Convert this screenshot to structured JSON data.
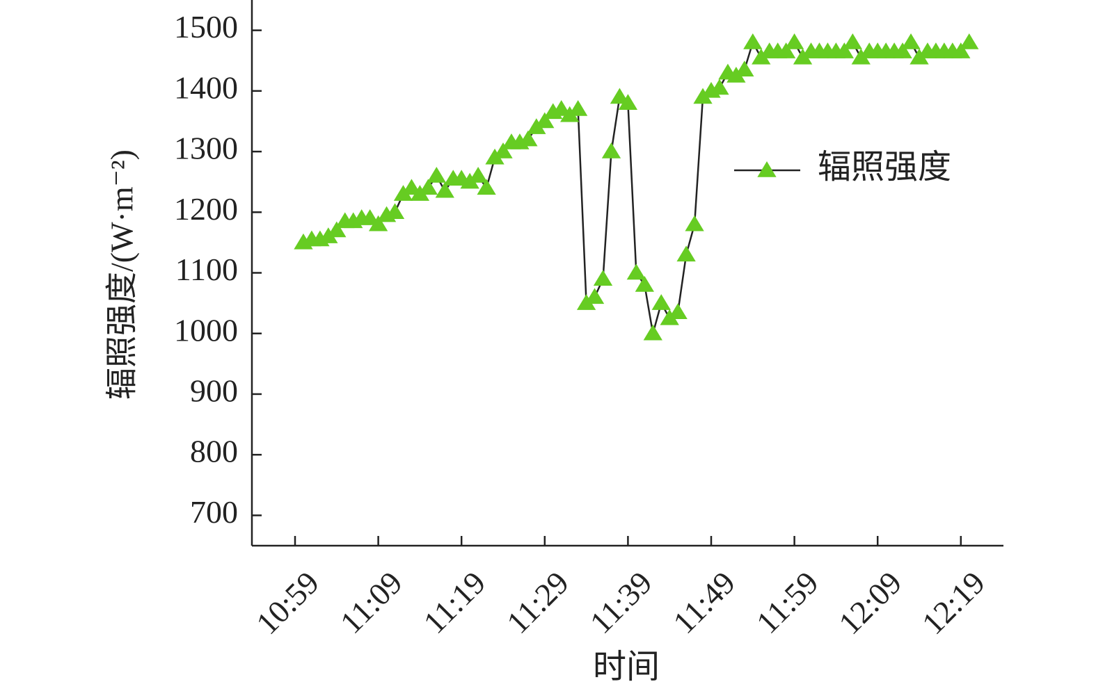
{
  "chart_data": {
    "type": "line",
    "x_label": "时间",
    "y_label": "辐照强度/(W·m⁻²)",
    "categories": [
      "10:59",
      null,
      null,
      null,
      null,
      null,
      null,
      null,
      null,
      null,
      "11:09",
      null,
      null,
      null,
      null,
      null,
      null,
      null,
      null,
      null,
      "11:19",
      null,
      null,
      null,
      null,
      null,
      null,
      null,
      null,
      null,
      "11:29",
      null,
      null,
      null,
      null,
      null,
      null,
      null,
      null,
      null,
      "11:39",
      null,
      null,
      null,
      null,
      null,
      null,
      null,
      null,
      null,
      "11:49",
      null,
      null,
      null,
      null,
      null,
      null,
      null,
      null,
      null,
      "11:59",
      null,
      null,
      null,
      null,
      null,
      null,
      null,
      null,
      null,
      "12:09",
      null,
      null,
      null,
      null,
      null,
      null,
      null,
      null,
      null,
      "12:19",
      null
    ],
    "series": [
      {
        "name": "辐照强度",
        "color": "#222222",
        "marker_color": "#66cc22",
        "values": [
          null,
          1150,
          1155,
          1155,
          1160,
          1170,
          1185,
          1185,
          1190,
          1190,
          1180,
          1195,
          1200,
          1230,
          1240,
          1230,
          1240,
          1260,
          1235,
          1255,
          1255,
          1250,
          1260,
          1240,
          1290,
          1300,
          1315,
          1315,
          1320,
          1340,
          1350,
          1365,
          1370,
          1360,
          1370,
          1050,
          1060,
          1090,
          1300,
          1390,
          1380,
          1100,
          1080,
          1000,
          1050,
          1025,
          1035,
          1130,
          1180,
          1390,
          1400,
          1405,
          1430,
          1425,
          1435,
          1480,
          1455,
          1465,
          1465,
          1465,
          1480,
          1455,
          1465,
          1465,
          1465,
          1465,
          1465,
          1480,
          1455,
          1465,
          1465,
          1465,
          1465,
          1465,
          1480,
          1455,
          1465,
          1465,
          1465,
          1465,
          1465,
          1480
        ]
      }
    ],
    "ylim": [
      650,
      1550
    ],
    "yticks": [
      700,
      800,
      900,
      1000,
      1100,
      1200,
      1300,
      1400,
      1500
    ],
    "legend": "upper-right"
  }
}
